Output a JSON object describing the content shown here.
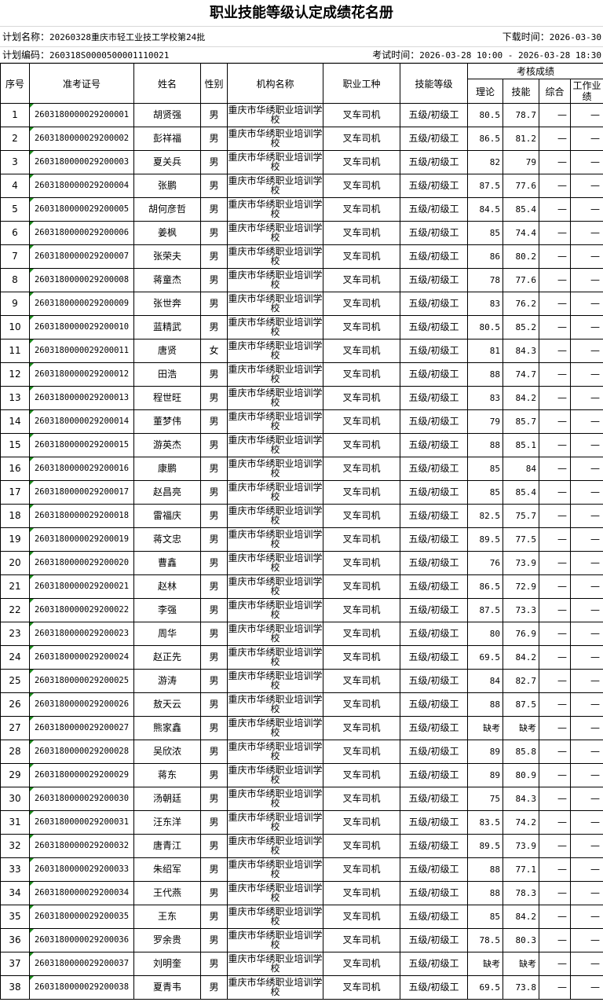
{
  "title": "职业技能等级认定成绩花名册",
  "plan": {
    "name_label": "计划名称：",
    "name_value": "20260328重庆市轻工业技工学校第24批",
    "download_label": "下载时间：",
    "download_value": "2026-03-30",
    "code_label": "计划编码：",
    "code_value": "260318S0000500001110021",
    "exam_label": "考试时间：",
    "exam_value": "2026-03-28 10:00 - 2026-03-28 18:30"
  },
  "headers": {
    "no": "序号",
    "id": "准考证号",
    "name": "姓名",
    "gender": "性别",
    "org": "机构名称",
    "job": "职业工种",
    "level": "技能等级",
    "scores": "考核成绩",
    "theory": "理论",
    "skill": "技能",
    "overall": "综合",
    "work": "工作业绩"
  },
  "table": {
    "rows": [
      {
        "no": "1",
        "id": "2603180000029200001",
        "name": "胡贤强",
        "gender": "男",
        "org": "重庆市华绣职业培训学校",
        "job": "叉车司机",
        "level": "五级/初级工",
        "theory": "80.5",
        "skill": "78.7",
        "overall": "—",
        "work": "—"
      },
      {
        "no": "2",
        "id": "2603180000029200002",
        "name": "彭祥福",
        "gender": "男",
        "org": "重庆市华绣职业培训学校",
        "job": "叉车司机",
        "level": "五级/初级工",
        "theory": "86.5",
        "skill": "81.2",
        "overall": "—",
        "work": "—"
      },
      {
        "no": "3",
        "id": "2603180000029200003",
        "name": "夏关兵",
        "gender": "男",
        "org": "重庆市华绣职业培训学校",
        "job": "叉车司机",
        "level": "五级/初级工",
        "theory": "82",
        "skill": "79",
        "overall": "—",
        "work": "—"
      },
      {
        "no": "4",
        "id": "2603180000029200004",
        "name": "张鹏",
        "gender": "男",
        "org": "重庆市华绣职业培训学校",
        "job": "叉车司机",
        "level": "五级/初级工",
        "theory": "87.5",
        "skill": "77.6",
        "overall": "—",
        "work": "—"
      },
      {
        "no": "5",
        "id": "2603180000029200005",
        "name": "胡何彦哲",
        "gender": "男",
        "org": "重庆市华绣职业培训学校",
        "job": "叉车司机",
        "level": "五级/初级工",
        "theory": "84.5",
        "skill": "85.4",
        "overall": "—",
        "work": "—"
      },
      {
        "no": "6",
        "id": "2603180000029200006",
        "name": "姜枫",
        "gender": "男",
        "org": "重庆市华绣职业培训学校",
        "job": "叉车司机",
        "level": "五级/初级工",
        "theory": "85",
        "skill": "74.4",
        "overall": "—",
        "work": "—"
      },
      {
        "no": "7",
        "id": "2603180000029200007",
        "name": "张荣夫",
        "gender": "男",
        "org": "重庆市华绣职业培训学校",
        "job": "叉车司机",
        "level": "五级/初级工",
        "theory": "86",
        "skill": "80.2",
        "overall": "—",
        "work": "—"
      },
      {
        "no": "8",
        "id": "2603180000029200008",
        "name": "蒋童杰",
        "gender": "男",
        "org": "重庆市华绣职业培训学校",
        "job": "叉车司机",
        "level": "五级/初级工",
        "theory": "78",
        "skill": "77.6",
        "overall": "—",
        "work": "—"
      },
      {
        "no": "9",
        "id": "2603180000029200009",
        "name": "张世奔",
        "gender": "男",
        "org": "重庆市华绣职业培训学校",
        "job": "叉车司机",
        "level": "五级/初级工",
        "theory": "83",
        "skill": "76.2",
        "overall": "—",
        "work": "—"
      },
      {
        "no": "10",
        "id": "2603180000029200010",
        "name": "蓝精武",
        "gender": "男",
        "org": "重庆市华绣职业培训学校",
        "job": "叉车司机",
        "level": "五级/初级工",
        "theory": "80.5",
        "skill": "85.2",
        "overall": "—",
        "work": "—"
      },
      {
        "no": "11",
        "id": "2603180000029200011",
        "name": "唐贤",
        "gender": "女",
        "org": "重庆市华绣职业培训学校",
        "job": "叉车司机",
        "level": "五级/初级工",
        "theory": "81",
        "skill": "84.3",
        "overall": "—",
        "work": "—"
      },
      {
        "no": "12",
        "id": "2603180000029200012",
        "name": "田浩",
        "gender": "男",
        "org": "重庆市华绣职业培训学校",
        "job": "叉车司机",
        "level": "五级/初级工",
        "theory": "88",
        "skill": "74.7",
        "overall": "—",
        "work": "—"
      },
      {
        "no": "13",
        "id": "2603180000029200013",
        "name": "程世旺",
        "gender": "男",
        "org": "重庆市华绣职业培训学校",
        "job": "叉车司机",
        "level": "五级/初级工",
        "theory": "83",
        "skill": "84.2",
        "overall": "—",
        "work": "—"
      },
      {
        "no": "14",
        "id": "2603180000029200014",
        "name": "董梦伟",
        "gender": "男",
        "org": "重庆市华绣职业培训学校",
        "job": "叉车司机",
        "level": "五级/初级工",
        "theory": "79",
        "skill": "85.7",
        "overall": "—",
        "work": "—"
      },
      {
        "no": "15",
        "id": "2603180000029200015",
        "name": "游英杰",
        "gender": "男",
        "org": "重庆市华绣职业培训学校",
        "job": "叉车司机",
        "level": "五级/初级工",
        "theory": "88",
        "skill": "85.1",
        "overall": "—",
        "work": "—"
      },
      {
        "no": "16",
        "id": "2603180000029200016",
        "name": "康鹏",
        "gender": "男",
        "org": "重庆市华绣职业培训学校",
        "job": "叉车司机",
        "level": "五级/初级工",
        "theory": "85",
        "skill": "84",
        "overall": "—",
        "work": "—"
      },
      {
        "no": "17",
        "id": "2603180000029200017",
        "name": "赵昌亮",
        "gender": "男",
        "org": "重庆市华绣职业培训学校",
        "job": "叉车司机",
        "level": "五级/初级工",
        "theory": "85",
        "skill": "85.4",
        "overall": "—",
        "work": "—"
      },
      {
        "no": "18",
        "id": "2603180000029200018",
        "name": "雷福庆",
        "gender": "男",
        "org": "重庆市华绣职业培训学校",
        "job": "叉车司机",
        "level": "五级/初级工",
        "theory": "82.5",
        "skill": "75.7",
        "overall": "—",
        "work": "—"
      },
      {
        "no": "19",
        "id": "2603180000029200019",
        "name": "蒋文忠",
        "gender": "男",
        "org": "重庆市华绣职业培训学校",
        "job": "叉车司机",
        "level": "五级/初级工",
        "theory": "89.5",
        "skill": "77.5",
        "overall": "—",
        "work": "—"
      },
      {
        "no": "20",
        "id": "2603180000029200020",
        "name": "曹鑫",
        "gender": "男",
        "org": "重庆市华绣职业培训学校",
        "job": "叉车司机",
        "level": "五级/初级工",
        "theory": "76",
        "skill": "73.9",
        "overall": "—",
        "work": "—"
      },
      {
        "no": "21",
        "id": "2603180000029200021",
        "name": "赵林",
        "gender": "男",
        "org": "重庆市华绣职业培训学校",
        "job": "叉车司机",
        "level": "五级/初级工",
        "theory": "86.5",
        "skill": "72.9",
        "overall": "—",
        "work": "—"
      },
      {
        "no": "22",
        "id": "2603180000029200022",
        "name": "李强",
        "gender": "男",
        "org": "重庆市华绣职业培训学校",
        "job": "叉车司机",
        "level": "五级/初级工",
        "theory": "87.5",
        "skill": "73.3",
        "overall": "—",
        "work": "—"
      },
      {
        "no": "23",
        "id": "2603180000029200023",
        "name": "周华",
        "gender": "男",
        "org": "重庆市华绣职业培训学校",
        "job": "叉车司机",
        "level": "五级/初级工",
        "theory": "80",
        "skill": "76.9",
        "overall": "—",
        "work": "—"
      },
      {
        "no": "24",
        "id": "2603180000029200024",
        "name": "赵正先",
        "gender": "男",
        "org": "重庆市华绣职业培训学校",
        "job": "叉车司机",
        "level": "五级/初级工",
        "theory": "69.5",
        "skill": "84.2",
        "overall": "—",
        "work": "—"
      },
      {
        "no": "25",
        "id": "2603180000029200025",
        "name": "游涛",
        "gender": "男",
        "org": "重庆市华绣职业培训学校",
        "job": "叉车司机",
        "level": "五级/初级工",
        "theory": "84",
        "skill": "82.7",
        "overall": "—",
        "work": "—"
      },
      {
        "no": "26",
        "id": "2603180000029200026",
        "name": "敖天云",
        "gender": "男",
        "org": "重庆市华绣职业培训学校",
        "job": "叉车司机",
        "level": "五级/初级工",
        "theory": "88",
        "skill": "87.5",
        "overall": "—",
        "work": "—"
      },
      {
        "no": "27",
        "id": "2603180000029200027",
        "name": "熊家鑫",
        "gender": "男",
        "org": "重庆市华绣职业培训学校",
        "job": "叉车司机",
        "level": "五级/初级工",
        "theory": "缺考",
        "skill": "缺考",
        "overall": "—",
        "work": "—"
      },
      {
        "no": "28",
        "id": "2603180000029200028",
        "name": "吴欣浓",
        "gender": "男",
        "org": "重庆市华绣职业培训学校",
        "job": "叉车司机",
        "level": "五级/初级工",
        "theory": "89",
        "skill": "85.8",
        "overall": "—",
        "work": "—"
      },
      {
        "no": "29",
        "id": "2603180000029200029",
        "name": "蒋东",
        "gender": "男",
        "org": "重庆市华绣职业培训学校",
        "job": "叉车司机",
        "level": "五级/初级工",
        "theory": "89",
        "skill": "80.9",
        "overall": "—",
        "work": "—"
      },
      {
        "no": "30",
        "id": "2603180000029200030",
        "name": "汤朝廷",
        "gender": "男",
        "org": "重庆市华绣职业培训学校",
        "job": "叉车司机",
        "level": "五级/初级工",
        "theory": "75",
        "skill": "84.3",
        "overall": "—",
        "work": "—"
      },
      {
        "no": "31",
        "id": "2603180000029200031",
        "name": "汪东洋",
        "gender": "男",
        "org": "重庆市华绣职业培训学校",
        "job": "叉车司机",
        "level": "五级/初级工",
        "theory": "83.5",
        "skill": "74.2",
        "overall": "—",
        "work": "—"
      },
      {
        "no": "32",
        "id": "2603180000029200032",
        "name": "唐青江",
        "gender": "男",
        "org": "重庆市华绣职业培训学校",
        "job": "叉车司机",
        "level": "五级/初级工",
        "theory": "89.5",
        "skill": "73.9",
        "overall": "—",
        "work": "—"
      },
      {
        "no": "33",
        "id": "2603180000029200033",
        "name": "朱绍军",
        "gender": "男",
        "org": "重庆市华绣职业培训学校",
        "job": "叉车司机",
        "level": "五级/初级工",
        "theory": "88",
        "skill": "77.1",
        "overall": "—",
        "work": "—"
      },
      {
        "no": "34",
        "id": "2603180000029200034",
        "name": "王代燕",
        "gender": "男",
        "org": "重庆市华绣职业培训学校",
        "job": "叉车司机",
        "level": "五级/初级工",
        "theory": "88",
        "skill": "78.3",
        "overall": "—",
        "work": "—"
      },
      {
        "no": "35",
        "id": "2603180000029200035",
        "name": "王东",
        "gender": "男",
        "org": "重庆市华绣职业培训学校",
        "job": "叉车司机",
        "level": "五级/初级工",
        "theory": "85",
        "skill": "84.2",
        "overall": "—",
        "work": "—"
      },
      {
        "no": "36",
        "id": "2603180000029200036",
        "name": "罗余贵",
        "gender": "男",
        "org": "重庆市华绣职业培训学校",
        "job": "叉车司机",
        "level": "五级/初级工",
        "theory": "78.5",
        "skill": "80.3",
        "overall": "—",
        "work": "—"
      },
      {
        "no": "37",
        "id": "2603180000029200037",
        "name": "刘明奎",
        "gender": "男",
        "org": "重庆市华绣职业培训学校",
        "job": "叉车司机",
        "level": "五级/初级工",
        "theory": "缺考",
        "skill": "缺考",
        "overall": "—",
        "work": "—"
      },
      {
        "no": "38",
        "id": "2603180000029200038",
        "name": "夏青韦",
        "gender": "男",
        "org": "重庆市华绣职业培训学校",
        "job": "叉车司机",
        "level": "五级/初级工",
        "theory": "69.5",
        "skill": "73.8",
        "overall": "—",
        "work": "—"
      }
    ]
  }
}
